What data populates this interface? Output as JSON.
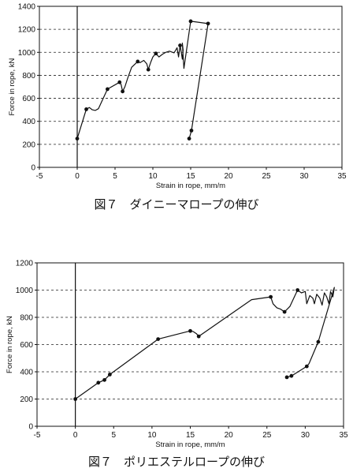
{
  "chart_data": [
    {
      "type": "line",
      "title": "",
      "xlabel": "Strain in rope, mm/m",
      "ylabel": "Force in rope, kN",
      "xlim": [
        -5,
        35
      ],
      "ylim": [
        0,
        1400
      ],
      "xticks": [
        -5,
        0,
        5,
        10,
        15,
        20,
        25,
        30,
        35
      ],
      "yticks": [
        0,
        200,
        400,
        600,
        800,
        1000,
        1200,
        1400
      ],
      "grid": "horizontal-dashed",
      "series": [
        {
          "points": [
            [
              0,
              250
            ],
            [
              1.2,
              505
            ],
            [
              1.6,
              520
            ],
            [
              2,
              500
            ],
            [
              2.4,
              495
            ],
            [
              2.8,
              510
            ],
            [
              4,
              680
            ],
            [
              5.6,
              740
            ],
            [
              5.8,
              720
            ],
            [
              6,
              660
            ],
            [
              6.3,
              700
            ],
            [
              6.7,
              780
            ],
            [
              7.2,
              870
            ],
            [
              8,
              920
            ],
            [
              8.3,
              910
            ],
            [
              8.8,
              930
            ],
            [
              9.2,
              900
            ],
            [
              9.4,
              850
            ],
            [
              9.7,
              910
            ],
            [
              10,
              960
            ],
            [
              10.4,
              990
            ],
            [
              10.8,
              960
            ],
            [
              11.3,
              985
            ],
            [
              11.7,
              1000
            ],
            [
              12.2,
              1010
            ],
            [
              12.8,
              995
            ],
            [
              13.2,
              1040
            ],
            [
              13.4,
              960
            ],
            [
              13.6,
              1060
            ],
            [
              13.8,
              980
            ],
            [
              13.9,
              940
            ],
            [
              14,
              1020
            ],
            [
              13.9,
              1080
            ],
            [
              14.1,
              860
            ],
            [
              15,
              1270
            ],
            [
              17.3,
              1250
            ],
            [
              15.1,
              320
            ],
            [
              14.8,
              250
            ]
          ],
          "markers": [
            [
              0,
              250
            ],
            [
              1.2,
              505
            ],
            [
              4,
              680
            ],
            [
              5.6,
              740
            ],
            [
              6,
              660
            ],
            [
              8,
              920
            ],
            [
              9.4,
              850
            ],
            [
              10.4,
              990
            ],
            [
              13.6,
              1060
            ],
            [
              15,
              1270
            ],
            [
              17.3,
              1250
            ],
            [
              15.1,
              320
            ],
            [
              14.8,
              250
            ]
          ]
        }
      ],
      "caption": "図７　ダイニーマロープの伸び"
    },
    {
      "type": "line",
      "title": "",
      "xlabel": "Strain in rope, mm/m",
      "ylabel": "Force in rope, kN",
      "xlim": [
        -5,
        35
      ],
      "ylim": [
        0,
        1200
      ],
      "xticks": [
        -5,
        0,
        5,
        10,
        15,
        20,
        25,
        30,
        35
      ],
      "yticks": [
        0,
        200,
        400,
        600,
        800,
        1000,
        1200
      ],
      "grid": "horizontal-dashed",
      "series": [
        {
          "points": [
            [
              0,
              200
            ],
            [
              2.5,
              300
            ],
            [
              3,
              320
            ],
            [
              3.8,
              340
            ],
            [
              4.5,
              380
            ],
            [
              10.8,
              640
            ],
            [
              15,
              700
            ],
            [
              15.4,
              695
            ],
            [
              15.8,
              680
            ],
            [
              16.1,
              660
            ],
            [
              16.6,
              680
            ],
            [
              23,
              930
            ],
            [
              25.5,
              950
            ],
            [
              25.8,
              900
            ],
            [
              26.3,
              870
            ],
            [
              26.8,
              860
            ],
            [
              27.3,
              840
            ],
            [
              28,
              880
            ],
            [
              29,
              1000
            ],
            [
              29.5,
              980
            ],
            [
              30,
              990
            ],
            [
              30.2,
              900
            ],
            [
              30.6,
              960
            ],
            [
              31,
              940
            ],
            [
              31.2,
              900
            ],
            [
              31.5,
              970
            ],
            [
              31.9,
              940
            ],
            [
              32.2,
              890
            ],
            [
              32.5,
              980
            ],
            [
              32.8,
              950
            ],
            [
              33.1,
              900
            ],
            [
              33.3,
              990
            ],
            [
              33.6,
              950
            ],
            [
              33.8,
              1020
            ],
            [
              31.7,
              620
            ],
            [
              30.5,
              460
            ],
            [
              30.2,
              440
            ],
            [
              28.2,
              370
            ],
            [
              27.6,
              360
            ]
          ],
          "markers": [
            [
              0,
              200
            ],
            [
              3,
              320
            ],
            [
              3.8,
              340
            ],
            [
              4.5,
              380
            ],
            [
              10.8,
              640
            ],
            [
              15,
              700
            ],
            [
              16.1,
              660
            ],
            [
              25.5,
              950
            ],
            [
              27.3,
              840
            ],
            [
              29,
              1000
            ],
            [
              31.7,
              620
            ],
            [
              30.2,
              440
            ],
            [
              28.2,
              370
            ],
            [
              27.6,
              360
            ]
          ]
        }
      ],
      "caption": "図７　ポリエステルロープの伸び"
    }
  ]
}
